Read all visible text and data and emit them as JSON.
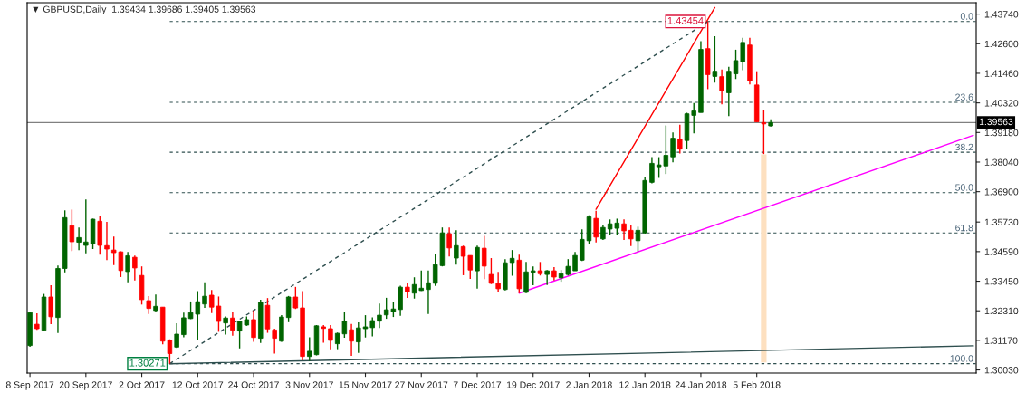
{
  "chart_data": {
    "type": "candlestick",
    "title": "▼ GBPUSD,Daily  1.39434 1.39686 1.39405 1.39563",
    "categories": [
      "8 Sep 2017",
      null,
      null,
      null,
      null,
      null,
      null,
      null,
      "20 Sep 2017",
      null,
      null,
      null,
      null,
      null,
      null,
      null,
      "2 Oct 2017",
      null,
      null,
      null,
      null,
      null,
      null,
      null,
      "12 Oct 2017",
      null,
      null,
      null,
      null,
      null,
      null,
      null,
      "24 Oct 2017",
      null,
      null,
      null,
      null,
      null,
      null,
      null,
      "3 Nov 2017",
      null,
      null,
      null,
      null,
      null,
      null,
      null,
      "15 Nov 2017",
      null,
      null,
      null,
      null,
      null,
      null,
      null,
      "27 Nov 2017",
      null,
      null,
      null,
      null,
      null,
      null,
      null,
      "7 Dec 2017",
      null,
      null,
      null,
      null,
      null,
      null,
      null,
      "19 Dec 2017",
      null,
      null,
      null,
      null,
      null,
      null,
      null,
      "2 Jan 2018",
      null,
      null,
      null,
      null,
      null,
      null,
      null,
      "12 Jan 2018",
      null,
      null,
      null,
      null,
      null,
      null,
      null,
      "24 Jan 2018",
      null,
      null,
      null,
      null,
      null,
      null,
      null,
      "5 Feb 2018",
      null,
      null,
      null,
      null,
      null,
      null,
      null,
      null,
      null,
      null,
      null,
      null,
      null,
      null,
      null,
      null,
      null,
      null,
      null,
      null,
      null,
      null,
      null,
      null,
      null,
      null,
      null,
      null,
      null,
      null,
      null
    ],
    "ohlc": [
      [
        1.3097,
        1.3228,
        1.3092,
        1.3224
      ],
      [
        1.3179,
        1.3221,
        1.3158,
        1.3162
      ],
      [
        1.3156,
        1.3296,
        1.3156,
        1.3284
      ],
      [
        1.3284,
        1.3329,
        1.3179,
        1.3208
      ],
      [
        1.3205,
        1.3405,
        1.3145,
        1.3394
      ],
      [
        1.3394,
        1.3618,
        1.3379,
        1.359
      ],
      [
        1.3559,
        1.3621,
        1.3461,
        1.3497
      ],
      [
        1.3495,
        1.3552,
        1.3465,
        1.3513
      ],
      [
        1.3483,
        1.366,
        1.3452,
        1.3496
      ],
      [
        1.3489,
        1.3586,
        1.3469,
        1.3584
      ],
      [
        1.3576,
        1.3597,
        1.3447,
        1.3483
      ],
      [
        1.3482,
        1.3574,
        1.3426,
        1.3469
      ],
      [
        1.3465,
        1.3517,
        1.3407,
        1.3455
      ],
      [
        1.3458,
        1.346,
        1.3361,
        1.3386
      ],
      [
        1.3382,
        1.3458,
        1.3341,
        1.3443
      ],
      [
        1.3437,
        1.3444,
        1.3348,
        1.3396
      ],
      [
        1.3367,
        1.3402,
        1.3255,
        1.3274
      ],
      [
        1.327,
        1.3288,
        1.3219,
        1.324
      ],
      [
        1.3232,
        1.3294,
        1.3228,
        1.3248
      ],
      [
        1.3245,
        1.3245,
        1.3102,
        1.3114
      ],
      [
        1.3117,
        1.3121,
        1.30271,
        1.3066
      ],
      [
        1.3091,
        1.3183,
        1.3088,
        1.3141
      ],
      [
        1.3139,
        1.3224,
        1.3129,
        1.3204
      ],
      [
        1.3201,
        1.3267,
        1.3199,
        1.3224
      ],
      [
        1.3218,
        1.3307,
        1.3117,
        1.3266
      ],
      [
        1.3257,
        1.3341,
        1.3242,
        1.3287
      ],
      [
        1.3291,
        1.3311,
        1.3222,
        1.3245
      ],
      [
        1.3249,
        1.3286,
        1.315,
        1.319
      ],
      [
        1.3184,
        1.3209,
        1.3139,
        1.3203
      ],
      [
        1.3203,
        1.3227,
        1.3135,
        1.3156
      ],
      [
        1.3153,
        1.3193,
        1.3086,
        1.319
      ],
      [
        1.3176,
        1.3209,
        1.3173,
        1.3197
      ],
      [
        1.3197,
        1.3233,
        1.3111,
        1.3128
      ],
      [
        1.3125,
        1.3274,
        1.3107,
        1.3263
      ],
      [
        1.3252,
        1.328,
        1.3146,
        1.3161
      ],
      [
        1.3157,
        1.3162,
        1.3066,
        1.3125
      ],
      [
        1.3114,
        1.3214,
        1.3111,
        1.3207
      ],
      [
        1.3205,
        1.3288,
        1.3187,
        1.3284
      ],
      [
        1.3284,
        1.3323,
        1.3238,
        1.3242
      ],
      [
        1.3242,
        1.3307,
        1.304,
        1.3055
      ],
      [
        1.3055,
        1.3129,
        1.3038,
        1.3075
      ],
      [
        1.3062,
        1.3176,
        1.3059,
        1.3173
      ],
      [
        1.3169,
        1.3176,
        1.3108,
        1.3163
      ],
      [
        1.3162,
        1.3176,
        1.3083,
        1.3117
      ],
      [
        1.3104,
        1.3147,
        1.3083,
        1.3144
      ],
      [
        1.3142,
        1.3228,
        1.3127,
        1.319
      ],
      [
        1.3158,
        1.318,
        1.3057,
        1.3114
      ],
      [
        1.3111,
        1.3186,
        1.3069,
        1.3165
      ],
      [
        1.3162,
        1.3214,
        1.3128,
        1.3169
      ],
      [
        1.3166,
        1.3206,
        1.3132,
        1.3193
      ],
      [
        1.3191,
        1.3259,
        1.3165,
        1.3214
      ],
      [
        1.3215,
        1.3281,
        1.32,
        1.3235
      ],
      [
        1.3228,
        1.3266,
        1.3207,
        1.3238
      ],
      [
        1.3236,
        1.3328,
        1.3212,
        1.3322
      ],
      [
        1.3322,
        1.3336,
        1.3281,
        1.3305
      ],
      [
        1.3299,
        1.336,
        1.3278,
        1.3332
      ],
      [
        1.3309,
        1.3386,
        1.3308,
        1.3318
      ],
      [
        1.3313,
        1.3386,
        1.3219,
        1.3339
      ],
      [
        1.3337,
        1.3448,
        1.3327,
        1.3409
      ],
      [
        1.3405,
        1.3552,
        1.3402,
        1.3531
      ],
      [
        1.3528,
        1.3552,
        1.344,
        1.3473
      ],
      [
        1.3434,
        1.3541,
        1.3409,
        1.3482
      ],
      [
        1.3478,
        1.3482,
        1.3368,
        1.3441
      ],
      [
        1.3444,
        1.3444,
        1.3354,
        1.3388
      ],
      [
        1.3385,
        1.3482,
        1.3316,
        1.3475
      ],
      [
        1.3472,
        1.352,
        1.3353,
        1.3403
      ],
      [
        1.3371,
        1.3434,
        1.3334,
        1.3337
      ],
      [
        1.3336,
        1.3381,
        1.3302,
        1.3316
      ],
      [
        1.3313,
        1.343,
        1.3309,
        1.3416
      ],
      [
        1.3417,
        1.3465,
        1.3366,
        1.3433
      ],
      [
        1.3426,
        1.3447,
        1.3299,
        1.3316
      ],
      [
        1.3302,
        1.3419,
        1.3299,
        1.3381
      ],
      [
        1.3379,
        1.3402,
        1.3329,
        1.3385
      ],
      [
        1.3385,
        1.3419,
        1.3367,
        1.3374
      ],
      [
        1.3371,
        1.3388,
        1.333,
        1.3385
      ],
      [
        1.3385,
        1.3399,
        1.3348,
        1.3361
      ],
      [
        1.3358,
        1.3388,
        1.3343,
        1.3374
      ],
      [
        1.3371,
        1.343,
        1.3367,
        1.3402
      ],
      [
        1.3385,
        1.3458,
        1.3385,
        1.3444
      ],
      [
        1.3426,
        1.3545,
        1.3423,
        1.3506
      ],
      [
        1.3501,
        1.3599,
        1.3489,
        1.3593
      ],
      [
        1.3587,
        1.3616,
        1.3494,
        1.3515
      ],
      [
        1.3508,
        1.3562,
        1.3504,
        1.3552
      ],
      [
        1.3546,
        1.3583,
        1.3522,
        1.3566
      ],
      [
        1.3549,
        1.3586,
        1.3522,
        1.3569
      ],
      [
        1.3566,
        1.3583,
        1.3504,
        1.3539
      ],
      [
        1.3541,
        1.3562,
        1.348,
        1.3508
      ],
      [
        1.3501,
        1.3555,
        1.3459,
        1.3541
      ],
      [
        1.3531,
        1.3747,
        1.3528,
        1.3733
      ],
      [
        1.3726,
        1.3823,
        1.3722,
        1.3799
      ],
      [
        1.3786,
        1.3823,
        1.3743,
        1.3793
      ],
      [
        1.3789,
        1.3945,
        1.3758,
        1.383
      ],
      [
        1.3824,
        1.3918,
        1.3803,
        1.3896
      ],
      [
        1.3893,
        1.3948,
        1.3837,
        1.3854
      ],
      [
        1.3887,
        1.3994,
        1.3854,
        1.399
      ],
      [
        1.3984,
        1.4032,
        1.3915,
        1.4001
      ],
      [
        1.3995,
        1.427,
        1.3995,
        1.4238
      ],
      [
        1.4241,
        1.43454,
        1.4085,
        1.4141
      ],
      [
        1.4134,
        1.4289,
        1.411,
        1.4154
      ],
      [
        1.4133,
        1.4161,
        1.4026,
        1.4078
      ],
      [
        1.4071,
        1.4171,
        1.3981,
        1.4154
      ],
      [
        1.4144,
        1.4237,
        1.4124,
        1.4195
      ],
      [
        1.419,
        1.4283,
        1.4158,
        1.4265
      ],
      [
        1.4255,
        1.4283,
        1.4103,
        1.4117
      ],
      [
        1.4101,
        1.4154,
        1.3959,
        1.3959
      ],
      [
        1.3956,
        1.4004,
        1.3835,
        1.3951
      ],
      [
        1.39434,
        1.39686,
        1.39405,
        1.39563
      ],
      null,
      null,
      null,
      null,
      null,
      null,
      null,
      null,
      null,
      null,
      null,
      null,
      null,
      null,
      null,
      null,
      null,
      null,
      null,
      null,
      null,
      null,
      null,
      null,
      null,
      null,
      null,
      null,
      null
    ],
    "colors": [
      "#006400",
      "#ff0000",
      "#006400",
      "#ff0000",
      "#006400",
      "#006400",
      "#ff0000",
      "#006400",
      "#006400",
      "#006400",
      "#ff0000",
      "#ff0000",
      "#ff0000",
      "#ff0000",
      "#006400",
      "#ff0000",
      "#ff0000",
      "#ff0000",
      "#006400",
      "#ff0000",
      "#ff0000",
      "#006400",
      "#006400",
      "#006400",
      "#006400",
      "#006400",
      "#ff0000",
      "#ff0000",
      "#006400",
      "#ff0000",
      "#006400",
      "#006400",
      "#ff0000",
      "#006400",
      "#ff0000",
      "#ff0000",
      "#006400",
      "#006400",
      "#ff0000",
      "#ff0000",
      "#006400",
      "#006400",
      "#ff0000",
      "#ff0000",
      "#006400",
      "#006400",
      "#ff0000",
      "#006400",
      "#006400",
      "#006400",
      "#006400",
      "#006400",
      "#006400",
      "#006400",
      "#ff0000",
      "#006400",
      "#006400",
      "#006400",
      "#006400",
      "#006400",
      "#ff0000",
      "#006400",
      "#ff0000",
      "#ff0000",
      "#006400",
      "#ff0000",
      "#ff0000",
      "#ff0000",
      "#006400",
      "#006400",
      "#ff0000",
      "#006400",
      "#006400",
      "#ff0000",
      "#006400",
      "#ff0000",
      "#006400",
      "#006400",
      "#006400",
      "#006400",
      "#006400",
      "#ff0000",
      "#006400",
      "#006400",
      "#006400",
      "#ff0000",
      "#ff0000",
      "#006400",
      "#006400",
      "#006400",
      "#006400",
      "#006400",
      "#006400",
      "#ff0000",
      "#006400",
      "#006400",
      "#006400",
      "#ff0000",
      "#006400",
      "#ff0000",
      "#006400",
      "#006400",
      "#006400",
      "#ff0000",
      "#ff0000",
      "#ff0000",
      "#006400",
      null,
      null,
      null,
      null,
      null,
      null,
      null,
      null,
      null,
      null,
      null,
      null,
      null,
      null,
      null,
      null,
      null,
      null,
      null,
      null,
      null,
      null,
      null,
      null,
      null,
      null,
      null,
      null,
      null
    ],
    "series": [
      {
        "type": "line",
        "color": "#ff0000",
        "line_style": "solid",
        "values": [
          null,
          null,
          null,
          null,
          null,
          null,
          null,
          null,
          null,
          null,
          null,
          null,
          null,
          null,
          null,
          null,
          null,
          null,
          null,
          null,
          null,
          null,
          null,
          null,
          null,
          null,
          null,
          null,
          null,
          null,
          null,
          null,
          null,
          null,
          null,
          null,
          null,
          null,
          null,
          null,
          null,
          null,
          null,
          null,
          null,
          null,
          null,
          null,
          null,
          null,
          null,
          null,
          null,
          null,
          null,
          null,
          null,
          null,
          null,
          null,
          null,
          null,
          null,
          null,
          null,
          null,
          null,
          null,
          null,
          null,
          null,
          null,
          null,
          null,
          null,
          null,
          null,
          null,
          null,
          null,
          null,
          1.3622,
          null,
          null,
          null,
          null,
          null,
          null,
          null,
          null,
          null,
          null,
          null,
          null,
          null,
          null,
          null,
          null,
          1.4399,
          null,
          null,
          null,
          null,
          null,
          null,
          null,
          null,
          null,
          null,
          null,
          null,
          null,
          null,
          null,
          null,
          null,
          null,
          null,
          null,
          null,
          null,
          null,
          null,
          null,
          null,
          null,
          null,
          null,
          null,
          null,
          null,
          null,
          null,
          null,
          null,
          null
        ]
      },
      {
        "type": "line",
        "color": "#ff00ff",
        "line_style": "solid",
        "values": [
          null,
          null,
          null,
          null,
          null,
          null,
          null,
          null,
          null,
          null,
          null,
          null,
          null,
          null,
          null,
          null,
          null,
          null,
          null,
          null,
          null,
          null,
          null,
          null,
          null,
          null,
          null,
          null,
          null,
          null,
          null,
          null,
          null,
          null,
          null,
          null,
          null,
          null,
          null,
          null,
          null,
          null,
          null,
          null,
          null,
          null,
          null,
          null,
          null,
          null,
          null,
          null,
          null,
          null,
          null,
          null,
          null,
          null,
          null,
          null,
          null,
          null,
          null,
          null,
          null,
          null,
          null,
          null,
          null,
          null,
          1.3299,
          null,
          null,
          null,
          null,
          null,
          null,
          null,
          null,
          null,
          null,
          null,
          null,
          null,
          null,
          null,
          null,
          null,
          null,
          null,
          null,
          null,
          null,
          null,
          null,
          null,
          null,
          null,
          null,
          null,
          null,
          null,
          null,
          null,
          null,
          null,
          null,
          null,
          null,
          null,
          null,
          null,
          null,
          null,
          null,
          null,
          null,
          null,
          null,
          null,
          null,
          null,
          null,
          null,
          null,
          null,
          null,
          null,
          null,
          null,
          null,
          null,
          null,
          null,
          null,
          1.3907
        ]
      },
      {
        "type": "line",
        "color": "#2f4f4f",
        "line_style": "dashed",
        "values": [
          null,
          null,
          null,
          null,
          null,
          null,
          null,
          null,
          null,
          null,
          null,
          null,
          null,
          null,
          null,
          null,
          null,
          null,
          null,
          null,
          1.3027,
          null,
          null,
          null,
          null,
          null,
          null,
          null,
          null,
          null,
          null,
          null,
          null,
          null,
          null,
          null,
          null,
          null,
          null,
          null,
          null,
          null,
          null,
          null,
          null,
          null,
          null,
          null,
          null,
          null,
          null,
          null,
          null,
          null,
          null,
          null,
          null,
          null,
          null,
          null,
          null,
          null,
          null,
          null,
          null,
          null,
          null,
          null,
          null,
          null,
          null,
          null,
          null,
          null,
          null,
          null,
          null,
          null,
          null,
          null,
          null,
          null,
          null,
          null,
          null,
          null,
          null,
          null,
          null,
          null,
          null,
          null,
          null,
          null,
          null,
          null,
          null,
          1.4345,
          null,
          null,
          null,
          null,
          null,
          null,
          null,
          null,
          null,
          null,
          null,
          null,
          null,
          null,
          null,
          null,
          null,
          null,
          null,
          null,
          null,
          null,
          null,
          null,
          null,
          null,
          null,
          null,
          null,
          null,
          null,
          null,
          null,
          null,
          null,
          null,
          null,
          null
        ]
      },
      {
        "type": "line",
        "color": "#2f4f4f",
        "line_style": "solid",
        "values": [
          null,
          null,
          null,
          null,
          null,
          null,
          null,
          null,
          null,
          null,
          null,
          null,
          null,
          null,
          null,
          null,
          null,
          null,
          null,
          null,
          1.3027,
          null,
          null,
          null,
          null,
          null,
          null,
          null,
          null,
          null,
          null,
          null,
          null,
          null,
          null,
          null,
          null,
          null,
          null,
          null,
          null,
          null,
          null,
          null,
          null,
          null,
          null,
          null,
          null,
          null,
          null,
          null,
          null,
          null,
          null,
          null,
          null,
          null,
          null,
          null,
          null,
          null,
          null,
          null,
          null,
          null,
          null,
          null,
          null,
          null,
          null,
          null,
          null,
          null,
          null,
          null,
          null,
          null,
          null,
          null,
          null,
          null,
          null,
          null,
          null,
          null,
          null,
          null,
          null,
          null,
          null,
          null,
          null,
          null,
          null,
          null,
          null,
          null,
          null,
          null,
          null,
          null,
          null,
          null,
          null,
          null,
          null,
          null,
          null,
          null,
          null,
          null,
          null,
          null,
          null,
          null,
          null,
          null,
          null,
          null,
          null,
          null,
          null,
          null,
          null,
          null,
          null,
          null,
          null,
          null,
          null,
          null,
          null,
          null,
          null,
          1.3096
        ]
      },
      {
        "type": "bar",
        "color": "#fde0c0",
        "values": [
          null,
          null,
          null,
          null,
          null,
          null,
          null,
          null,
          null,
          null,
          null,
          null,
          null,
          null,
          null,
          null,
          null,
          null,
          null,
          null,
          null,
          null,
          null,
          null,
          null,
          null,
          null,
          null,
          null,
          null,
          null,
          null,
          null,
          null,
          null,
          null,
          null,
          null,
          null,
          null,
          null,
          null,
          null,
          null,
          null,
          null,
          null,
          null,
          null,
          null,
          null,
          null,
          null,
          null,
          null,
          null,
          null,
          null,
          null,
          null,
          null,
          null,
          null,
          null,
          null,
          null,
          null,
          null,
          null,
          null,
          null,
          null,
          null,
          null,
          null,
          null,
          null,
          null,
          null,
          null,
          null,
          null,
          null,
          null,
          null,
          null,
          null,
          null,
          null,
          null,
          null,
          null,
          null,
          null,
          null,
          null,
          null,
          null,
          null,
          null,
          null,
          null,
          null,
          null,
          null,
          0.0802,
          null,
          null,
          null,
          null,
          null,
          null,
          null,
          null,
          null,
          null,
          null,
          null,
          null,
          null,
          null,
          null,
          null,
          null,
          null,
          null,
          null,
          null,
          null,
          null,
          null,
          null,
          null,
          null,
          null,
          null
        ],
        "base": [
          null,
          null,
          null,
          null,
          null,
          null,
          null,
          null,
          null,
          null,
          null,
          null,
          null,
          null,
          null,
          null,
          null,
          null,
          null,
          null,
          null,
          null,
          null,
          null,
          null,
          null,
          null,
          null,
          null,
          null,
          null,
          null,
          null,
          null,
          null,
          null,
          null,
          null,
          null,
          null,
          null,
          null,
          null,
          null,
          null,
          null,
          null,
          null,
          null,
          null,
          null,
          null,
          null,
          null,
          null,
          null,
          null,
          null,
          null,
          null,
          null,
          null,
          null,
          null,
          null,
          null,
          null,
          null,
          null,
          null,
          null,
          null,
          null,
          null,
          null,
          null,
          null,
          null,
          null,
          null,
          null,
          null,
          null,
          null,
          null,
          null,
          null,
          null,
          null,
          null,
          null,
          null,
          null,
          null,
          null,
          null,
          null,
          null,
          null,
          null,
          null,
          null,
          null,
          null,
          null,
          1.3032,
          null,
          null,
          null,
          null,
          null,
          null,
          null,
          null,
          null,
          null,
          null,
          null,
          null,
          null,
          null,
          null,
          null,
          null,
          null,
          null,
          null,
          null,
          null,
          null,
          null,
          null,
          null,
          null,
          null,
          null
        ]
      }
    ],
    "ref_lines": [
      {
        "axis": "y",
        "value": 1.43454,
        "label": "1.43454",
        "color": "#2f4f4f",
        "line_style": "dashed"
      },
      {
        "axis": "y",
        "value": 1.40343,
        "color": "#2f4f4f",
        "line_style": "dashed"
      },
      {
        "axis": "y",
        "value": 1.38418,
        "color": "#2f4f4f",
        "line_style": "dashed"
      },
      {
        "axis": "y",
        "value": 1.36863,
        "color": "#2f4f4f",
        "line_style": "dashed"
      },
      {
        "axis": "y",
        "value": 1.35307,
        "color": "#2f4f4f",
        "line_style": "dashed"
      },
      {
        "axis": "y",
        "value": 1.30271,
        "label": "1.30271",
        "color": "#2f4f4f",
        "line_style": "dashed"
      },
      {
        "axis": "y",
        "value": 1.39563,
        "label": "1.39563",
        "color": "#808080",
        "line_style": "solid"
      }
    ],
    "annotations": [
      {
        "text": "0.0",
        "y": 1.43454
      },
      {
        "text": "23.6",
        "y": 1.40343
      },
      {
        "text": "38.2",
        "y": 1.38418
      },
      {
        "text": "50.0",
        "y": 1.36863
      },
      {
        "text": "61.8",
        "y": 1.35307
      },
      {
        "text": "100.0",
        "y": 1.30271
      }
    ],
    "ylim": [
      1.2991,
      1.4418
    ],
    "yticks": [
      {
        "value": 1.4374,
        "label": "1.43740"
      },
      {
        "value": 1.426,
        "label": "1.42600"
      },
      {
        "value": 1.4146,
        "label": "1.41460"
      },
      {
        "value": 1.4032,
        "label": "1.40320"
      },
      {
        "value": 1.3918,
        "label": "1.39180"
      },
      {
        "value": 1.3804,
        "label": "1.38040"
      },
      {
        "value": 1.369,
        "label": "1.36900"
      },
      {
        "value": 1.3573,
        "label": "1.35730"
      },
      {
        "value": 1.3459,
        "label": "1.34590"
      },
      {
        "value": 1.3345,
        "label": "1.33450"
      },
      {
        "value": 1.3231,
        "label": "1.32310"
      },
      {
        "value": 1.3117,
        "label": "1.31170"
      },
      {
        "value": 1.3003,
        "label": "1.30030"
      }
    ]
  }
}
